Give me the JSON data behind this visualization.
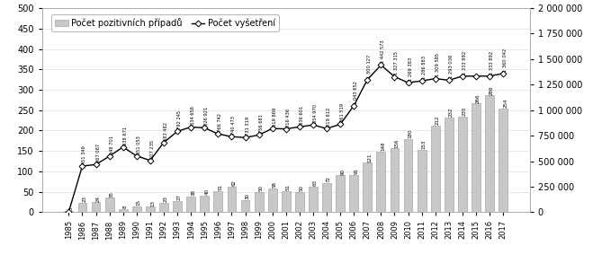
{
  "years": [
    1985,
    1986,
    1987,
    1988,
    1989,
    1990,
    1991,
    1992,
    1993,
    1994,
    1995,
    1996,
    1997,
    1998,
    1999,
    2000,
    2001,
    2002,
    2003,
    2004,
    2005,
    2006,
    2007,
    2008,
    2009,
    2010,
    2011,
    2012,
    2013,
    2014,
    2015,
    2016,
    2017
  ],
  "hiv_positive": [
    3,
    23,
    24,
    35,
    8,
    15,
    13,
    23,
    27,
    38,
    40,
    51,
    62,
    30,
    50,
    58,
    51,
    50,
    63,
    72,
    90,
    91,
    121,
    148,
    156,
    180,
    153,
    212,
    232,
    235,
    266,
    286,
    254
  ],
  "vysetreni": [
    3000,
    451349,
    467087,
    548701,
    638671,
    551053,
    507235,
    683482,
    792245,
    834656,
    826921,
    766742,
    740473,
    731319,
    756681,
    819869,
    816436,
    836601,
    854970,
    819812,
    861519,
    1043652,
    1300127,
    1442573,
    1327315,
    1269383,
    1286883,
    1309585,
    1293036,
    1333892,
    1333892,
    1333892,
    1360042
  ],
  "vysetreni_labels": [
    "",
    "451 349",
    "467 087",
    "548 701",
    "638 671",
    "551 053",
    "507 235",
    "683 482",
    "792 245",
    "834 656",
    "826 921",
    "766 742",
    "740 473",
    "731 319",
    "756 681",
    "819 869",
    "816 436",
    "836 601",
    "854 970",
    "819 812",
    "861 519",
    "1 043 652",
    "1 300 127",
    "1 442 573",
    "1 327 315",
    "1 269 383",
    "1 286 883",
    "1 309 585",
    "1 293 036",
    "1 333 892",
    "",
    "1 333 892",
    "1 360 042"
  ],
  "bar_color": "#c8c8c8",
  "bar_edgecolor": "#999999",
  "line_color": "#000000",
  "marker": "D",
  "markersize": 3.5,
  "legend_labels": [
    "Počet pozitivních případů",
    "Počet vyšetření"
  ],
  "ylim_left": [
    0,
    500
  ],
  "ylim_right": [
    0,
    2000000
  ],
  "yticks_left": [
    0,
    50,
    100,
    150,
    200,
    250,
    300,
    350,
    400,
    450,
    500
  ],
  "yticks_right": [
    0,
    250000,
    500000,
    750000,
    1000000,
    1250000,
    1500000,
    1750000,
    2000000
  ],
  "ytick_labels_right": [
    "0",
    "250 000",
    "500 000",
    "750 000",
    "1 000 000",
    "1 250 000",
    "1 500 000",
    "1 750 000",
    "2 000 000"
  ],
  "background_color": "#ffffff",
  "grid_color": "#e0e0e0"
}
